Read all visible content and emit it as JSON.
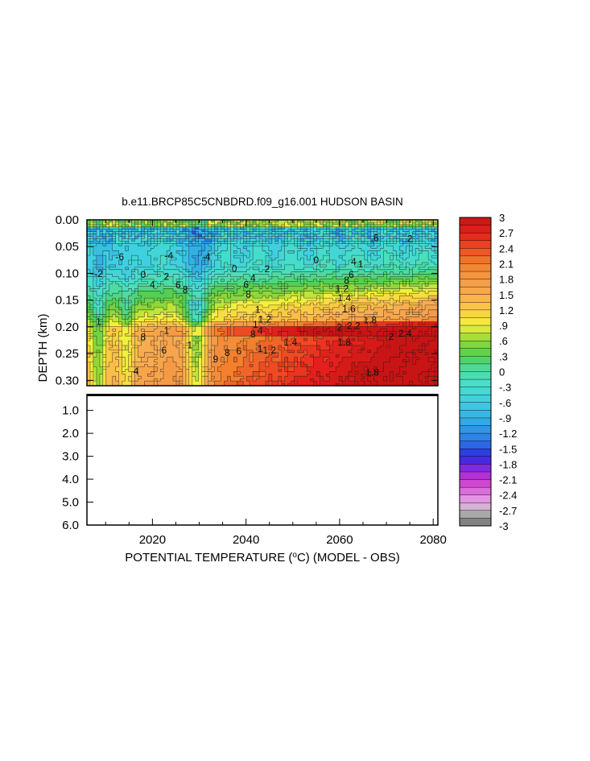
{
  "chart_data": {
    "type": "heatmap",
    "title": "b.e11.BRCP85C5CNBDRD.f09_g16.001 HUDSON BASIN",
    "xlabel": "POTENTIAL TEMPERATURE (",
    "xlabel_unit": "o",
    "xlabel_rest": "C) (MODEL - OBS)",
    "ylabel": "DEPTH (km)",
    "x_range": [
      2006,
      2081
    ],
    "x_ticks": [
      "2020",
      "2040",
      "2060",
      "2080"
    ],
    "x_tick_values": [
      2020,
      2040,
      2060,
      2080
    ],
    "upper_panel": {
      "y_range": [
        0.0,
        0.31
      ],
      "y_ticks": [
        "0.00",
        "0.05",
        "0.10",
        "0.15",
        "0.20",
        "0.25",
        "0.30"
      ],
      "y_tick_values": [
        0.0,
        0.05,
        0.1,
        0.15,
        0.2,
        0.25,
        0.3
      ]
    },
    "lower_panel": {
      "y_range": [
        0.31,
        6.0
      ],
      "y_ticks": [
        "1.0",
        "2.0",
        "3.0",
        "4.0",
        "5.0",
        "6.0"
      ],
      "y_tick_values": [
        1.0,
        2.0,
        3.0,
        4.0,
        5.0,
        6.0
      ],
      "filled": false
    },
    "colorbar": {
      "range": [
        -3,
        3
      ],
      "step": 0.15,
      "labels": [
        "3",
        "2.7",
        "2.4",
        "2.1",
        "1.8",
        "1.5",
        "1.2",
        ".9",
        ".6",
        ".3",
        "0",
        "-.3",
        "-.6",
        "-.9",
        "-1.2",
        "-1.5",
        "-1.8",
        "-2.1",
        "-2.4",
        "-2.7",
        "-3"
      ],
      "label_values": [
        3,
        2.7,
        2.4,
        2.1,
        1.8,
        1.5,
        1.2,
        0.9,
        0.6,
        0.3,
        0,
        -0.3,
        -0.6,
        -0.9,
        -1.2,
        -1.5,
        -1.8,
        -2.1,
        -2.4,
        -2.7,
        -3
      ],
      "stops": [
        {
          "v": -3.0,
          "color": "#6e6e6e"
        },
        {
          "v": -2.7,
          "color": "#bdbdbd"
        },
        {
          "v": -2.55,
          "color": "#e8a8e8"
        },
        {
          "v": -2.1,
          "color": "#cc33cc"
        },
        {
          "v": -1.9,
          "color": "#8a2be2"
        },
        {
          "v": -1.65,
          "color": "#2a2adf"
        },
        {
          "v": -1.35,
          "color": "#2c7be8"
        },
        {
          "v": -1.0,
          "color": "#2fa6e6"
        },
        {
          "v": -0.6,
          "color": "#3fd0e0"
        },
        {
          "v": -0.2,
          "color": "#48e0c6"
        },
        {
          "v": 0.1,
          "color": "#4ed992"
        },
        {
          "v": 0.3,
          "color": "#52d052"
        },
        {
          "v": 0.6,
          "color": "#8ed838"
        },
        {
          "v": 0.9,
          "color": "#f2f03c"
        },
        {
          "v": 1.2,
          "color": "#fbcc44"
        },
        {
          "v": 1.5,
          "color": "#f8ad50"
        },
        {
          "v": 1.8,
          "color": "#f59a45"
        },
        {
          "v": 2.1,
          "color": "#f2802c"
        },
        {
          "v": 2.4,
          "color": "#ee4a24"
        },
        {
          "v": 2.7,
          "color": "#e4201c"
        },
        {
          "v": 3.0,
          "color": "#c81414"
        }
      ]
    },
    "contour_labels": [
      {
        "text": "-6",
        "x": 2013.0,
        "y": 0.069
      },
      {
        "text": "-4",
        "x": 2023.5,
        "y": 0.067
      },
      {
        "text": "-4",
        "x": 2031.5,
        "y": 0.069
      },
      {
        "text": "-2",
        "x": 2008.5,
        "y": 0.101
      },
      {
        "text": "0",
        "x": 2018.0,
        "y": 0.102
      },
      {
        "text": "0",
        "x": 2037.5,
        "y": 0.091
      },
      {
        "text": "2",
        "x": 2044.5,
        "y": 0.092
      },
      {
        "text": "4",
        "x": 2020.0,
        "y": 0.121
      },
      {
        "text": "2",
        "x": 2023.0,
        "y": 0.106
      },
      {
        "text": "6",
        "x": 2025.5,
        "y": 0.122
      },
      {
        "text": "8",
        "x": 2027.0,
        "y": 0.131
      },
      {
        "text": "4",
        "x": 2041.5,
        "y": 0.109
      },
      {
        "text": "6",
        "x": 2040.0,
        "y": 0.121
      },
      {
        "text": "8",
        "x": 2040.5,
        "y": 0.139
      },
      {
        "text": "1",
        "x": 2042.5,
        "y": 0.168
      },
      {
        "text": "0",
        "x": 2055.0,
        "y": 0.075
      },
      {
        "text": "4",
        "x": 2063.0,
        "y": 0.078
      },
      {
        "text": "1",
        "x": 2064.5,
        "y": 0.083
      },
      {
        "text": "6",
        "x": 2062.5,
        "y": 0.102
      },
      {
        "text": "8",
        "x": 2061.5,
        "y": 0.113
      },
      {
        "text": "1.2",
        "x": 2060.5,
        "y": 0.129
      },
      {
        "text": "1.4",
        "x": 2061.0,
        "y": 0.146
      },
      {
        "text": "1.6",
        "x": 2062.0,
        "y": 0.166
      },
      {
        "text": "1.8",
        "x": 2066.5,
        "y": 0.187
      },
      {
        "text": "2.2",
        "x": 2063.0,
        "y": 0.198
      },
      {
        "text": "2",
        "x": 2060.0,
        "y": 0.201
      },
      {
        "text": "1.2",
        "x": 2044.0,
        "y": 0.186
      },
      {
        "text": "1",
        "x": 2042.0,
        "y": 0.196
      },
      {
        "text": "4",
        "x": 2043.0,
        "y": 0.207
      },
      {
        "text": "8",
        "x": 2041.5,
        "y": 0.214
      },
      {
        "text": "1.4",
        "x": 2049.5,
        "y": 0.229
      },
      {
        "text": "1.2",
        "x": 2045.0,
        "y": 0.244
      },
      {
        "text": "1",
        "x": 2043.0,
        "y": 0.241
      },
      {
        "text": "6",
        "x": 2038.5,
        "y": 0.245
      },
      {
        "text": "8",
        "x": 2036.0,
        "y": 0.248
      },
      {
        "text": "9",
        "x": 2033.5,
        "y": 0.26
      },
      {
        "text": "6",
        "x": 2022.5,
        "y": 0.244
      },
      {
        "text": "1",
        "x": 2028.0,
        "y": 0.234
      },
      {
        "text": "8",
        "x": 2018.0,
        "y": 0.219
      },
      {
        "text": "1",
        "x": 2023.0,
        "y": 0.207
      },
      {
        "text": "2",
        "x": 2071.0,
        "y": 0.218
      },
      {
        "text": "2.4",
        "x": 2074.0,
        "y": 0.212
      },
      {
        "text": "1",
        "x": 2008.5,
        "y": 0.19
      },
      {
        "text": "4",
        "x": 2016.5,
        "y": 0.283
      },
      {
        "text": "1.8",
        "x": 2067.0,
        "y": 0.285
      },
      {
        "text": "1.8",
        "x": 2061.0,
        "y": 0.229
      },
      {
        "text": "2",
        "x": 2075.0,
        "y": 0.035
      },
      {
        "text": ".6",
        "x": 2067.5,
        "y": 0.034
      }
    ]
  }
}
